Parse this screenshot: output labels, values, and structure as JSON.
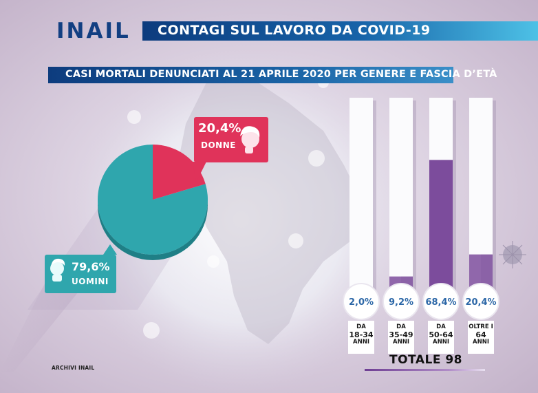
{
  "header": {
    "logo": "INAIL",
    "title": "CONTAGI SUL LAVORO DA COVID-19",
    "subtitle": "CASI MORTALI DENUNCIATI AL 21 APRILE 2020 PER GENERE E FASCIA D’ETÀ"
  },
  "footer": {
    "source": "ARCHIVI INAIL",
    "total": "TOTALE 98"
  },
  "colors": {
    "men": "#2fa6ad",
    "women": "#e0335a",
    "age_fill": "#7c4c9c",
    "header_dark": "#0d3c7e",
    "header_light": "#4dc1e6"
  },
  "icons": [
    "woman-head-icon",
    "man-head-icon",
    "virus-icon"
  ],
  "chart_data": [
    {
      "type": "pie",
      "categories": [
        "UOMINI",
        "DONNE"
      ],
      "values": [
        79.6,
        20.4
      ],
      "labels": [
        "79,6%",
        "20,4%"
      ]
    },
    {
      "type": "bar",
      "categories": [
        [
          "DA",
          "18-34",
          "ANNI"
        ],
        [
          "DA",
          "35-49",
          "ANNI"
        ],
        [
          "DA",
          "50-64",
          "ANNI"
        ],
        [
          "OLTRE I",
          "64",
          "ANNI"
        ]
      ],
      "values": [
        2.0,
        9.2,
        68.4,
        20.4
      ],
      "labels": [
        "2,0%",
        "9,2%",
        "68,4%",
        "20,4%"
      ],
      "ylim": [
        0,
        100
      ]
    }
  ]
}
